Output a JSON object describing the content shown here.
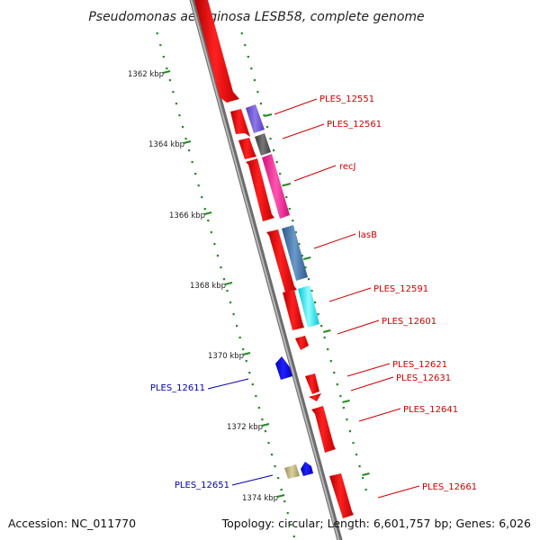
{
  "title": "Pseudomonas aeruginosa LESB58, complete genome",
  "footer": {
    "accession": "Accession: NC_011770",
    "summary": "Topology: circular; Length: 6,601,757 bp; Genes: 6,026"
  },
  "colors": {
    "forward_cds": "#ff0000",
    "reverse_cds": "#0000ff",
    "forward_label": "#cc0000",
    "reverse_label": "#0000aa",
    "ticks": "#228b22",
    "backbone": "#8c8c8c"
  },
  "kbp_ticks": [
    {
      "label": "1362 kbp"
    },
    {
      "label": "1364 kbp"
    },
    {
      "label": "1366 kbp"
    },
    {
      "label": "1368 kbp"
    },
    {
      "label": "1370 kbp"
    },
    {
      "label": "1372 kbp"
    },
    {
      "label": "1374 kbp"
    }
  ],
  "gene_labels": [
    {
      "text": "PLES_12551",
      "strand": "forward"
    },
    {
      "text": "PLES_12561",
      "strand": "forward"
    },
    {
      "text": "recJ",
      "strand": "forward"
    },
    {
      "text": "lasB",
      "strand": "forward"
    },
    {
      "text": "PLES_12591",
      "strand": "forward"
    },
    {
      "text": "PLES_12601",
      "strand": "forward"
    },
    {
      "text": "PLES_12621",
      "strand": "forward"
    },
    {
      "text": "PLES_12631",
      "strand": "forward"
    },
    {
      "text": "PLES_12641",
      "strand": "forward"
    },
    {
      "text": "PLES_12661",
      "strand": "forward"
    },
    {
      "text": "PLES_12611",
      "strand": "reverse"
    },
    {
      "text": "PLES_12651",
      "strand": "reverse"
    }
  ]
}
